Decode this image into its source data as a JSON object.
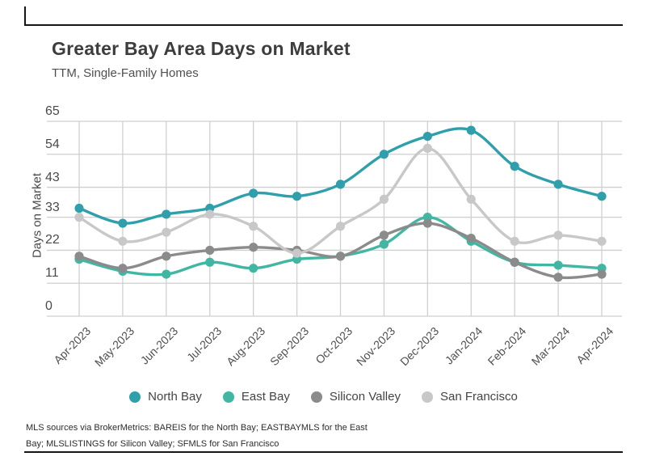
{
  "page": {
    "title": "Greater Bay Area Days on Market",
    "subtitle": "TTM, Single-Family Homes",
    "footnote_line1": "MLS sources via BrokerMetrics: BAREIS for the North Bay; EASTBAYMLS for the East",
    "footnote_line2": "Bay; MLSLISTINGS for Silicon Valley; SFMLS for San Francisco"
  },
  "chart_data": {
    "type": "line",
    "title": "Greater Bay Area Days on Market",
    "subtitle": "TTM, Single-Family Homes",
    "xlabel": "",
    "ylabel": "Days on Market",
    "x": [
      "Apr-2023",
      "May-2023",
      "Jun-2023",
      "Jul-2023",
      "Aug-2023",
      "Sep-2023",
      "Oct-2023",
      "Nov-2023",
      "Dec-2023",
      "Jan-2024",
      "Feb-2024",
      "Mar-2024",
      "Apr-2024"
    ],
    "yticks": [
      0,
      11,
      22,
      33,
      43,
      54,
      65
    ],
    "ylim": [
      0,
      65
    ],
    "grid": true,
    "smooth_lines": true,
    "legend_position": "bottom",
    "series": [
      {
        "name": "North Bay",
        "color": "#2f9fac",
        "values": [
          36,
          31,
          34,
          36,
          41,
          40,
          44,
          54,
          60,
          62,
          50,
          44,
          40
        ]
      },
      {
        "name": "East Bay",
        "color": "#41b7a3",
        "values": [
          19,
          15,
          14,
          18,
          16,
          19,
          20,
          24,
          33,
          25,
          18,
          17,
          16
        ]
      },
      {
        "name": "Silicon Valley",
        "color": "#8b8b8b",
        "values": [
          20,
          16,
          20,
          22,
          23,
          22,
          20,
          27,
          31,
          26,
          18,
          13,
          14
        ]
      },
      {
        "name": "San Francisco",
        "color": "#c8c8c8",
        "values": [
          33,
          25,
          28,
          34,
          30,
          21,
          30,
          39,
          56,
          39,
          25,
          27,
          25
        ]
      }
    ],
    "gridline_color": "#cfcfcf"
  }
}
